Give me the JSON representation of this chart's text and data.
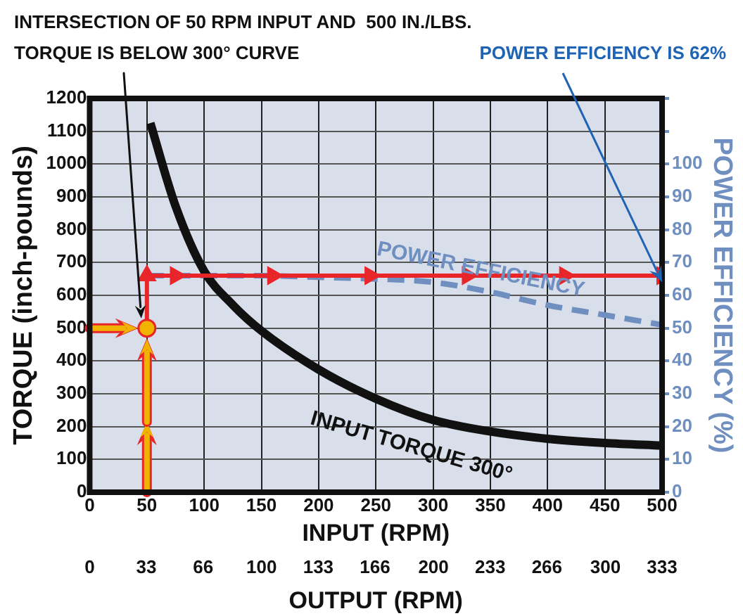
{
  "chart_data": {
    "type": "line",
    "xlabel": "INPUT (RPM)",
    "x2label": "OUTPUT (RPM)",
    "ylabel": "TORQUE (inch-pounds)",
    "y2label": "POWER EFFICIENCY (%)",
    "xlim": [
      0,
      500
    ],
    "xticks": [
      0,
      50,
      100,
      150,
      200,
      250,
      300,
      350,
      400,
      450,
      500
    ],
    "x2lim": [
      0,
      333
    ],
    "x2ticks": [
      0,
      33,
      66,
      100,
      133,
      166,
      200,
      233,
      266,
      300,
      333
    ],
    "ylim": [
      0,
      1200
    ],
    "yticks": [
      0,
      100,
      200,
      300,
      400,
      500,
      600,
      700,
      800,
      900,
      1000,
      1100,
      1200
    ],
    "y2lim": [
      0,
      120
    ],
    "y2ticks": [
      0,
      10,
      20,
      30,
      40,
      50,
      60,
      70,
      80,
      90,
      100,
      {
        "value": 110,
        "label": null
      },
      {
        "value": 120,
        "label": null
      }
    ],
    "grid": true,
    "legend": false,
    "series": [
      {
        "name": "INPUT TORQUE 300°",
        "color": "#111111",
        "line_style": "solid",
        "marker": "none",
        "x": [
          53,
          75,
          100,
          125,
          150,
          200,
          250,
          300,
          350,
          400,
          450,
          500
        ],
        "values": [
          1125,
          872,
          674,
          571,
          492,
          374,
          285,
          220,
          185,
          163,
          150,
          142
        ]
      },
      {
        "name": "POWER EFFICIENCY",
        "axis": "y2",
        "color": "#6f8fc0",
        "line_style": "dashed",
        "marker": "none",
        "x": [
          50,
          100,
          150,
          200,
          250,
          300,
          350,
          400,
          450,
          500
        ],
        "values": [
          66,
          66,
          66,
          65.5,
          65,
          64,
          61,
          57,
          54,
          51
        ]
      },
      {
        "color": "#e8262a",
        "line_style": "solid",
        "marker": "triangle",
        "x": [
          50,
          50,
          75,
          160,
          245,
          330,
          415,
          500
        ],
        "values": [
          500,
          660,
          660,
          660,
          660,
          660,
          660,
          660
        ]
      },
      {
        "type": "scatter",
        "color": "#f0b400",
        "marker": "circle",
        "x": [
          50
        ],
        "values": [
          500
        ]
      }
    ],
    "annotations": [
      "INTERSECTION OF 50 RPM INPUT AND  500 IN./LBS.\nTORQUE IS BELOW 300° CURVE",
      {
        "text": "POWER EFFICIENCY IS 62%",
        "x": 500,
        "y": 640
      }
    ]
  }
}
